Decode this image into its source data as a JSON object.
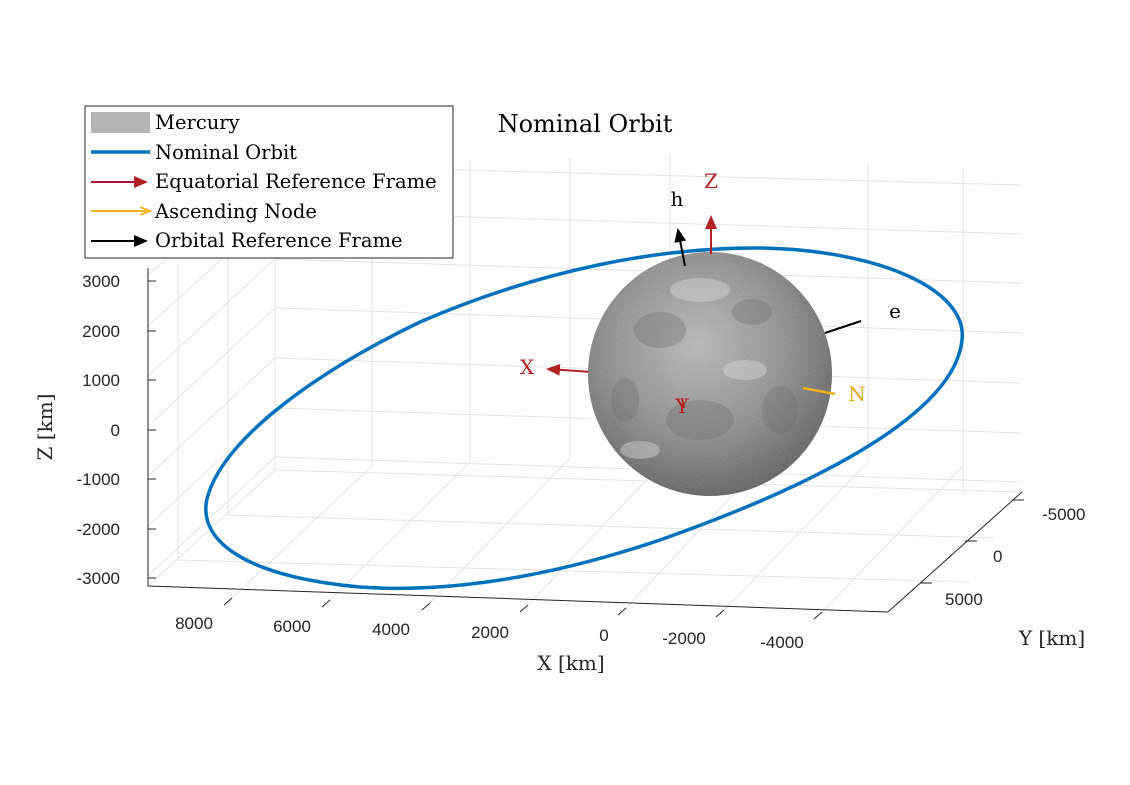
{
  "chart_data": {
    "type": "line",
    "title": "Nominal Orbit",
    "xlabel": "X [km]",
    "ylabel": "Y [km]",
    "zlabel": "Z [km]",
    "x_ticks": [
      "8000",
      "6000",
      "4000",
      "2000",
      "0",
      "-2000",
      "-4000"
    ],
    "y_ticks": [
      "-5000",
      "0",
      "5000"
    ],
    "z_ticks": [
      "3000",
      "2000",
      "1000",
      "0",
      "-1000",
      "-2000",
      "-3000"
    ],
    "grid": true,
    "legend_placement": "top-left",
    "legend": [
      {
        "label": "Mercury",
        "kind": "patch",
        "color": "#b3b3b8"
      },
      {
        "label": "Nominal Orbit",
        "kind": "line",
        "color": "#0072bd"
      },
      {
        "label": "Equatorial Reference Frame",
        "kind": "arrow",
        "color": "#a2142f"
      },
      {
        "label": "Ascending Node",
        "kind": "arrow",
        "color": "#edb120"
      },
      {
        "label": "Orbital Reference Frame",
        "kind": "arrow",
        "color": "#000000"
      }
    ],
    "vector_labels": [
      {
        "text": "Z",
        "color": "#b22222"
      },
      {
        "text": "X",
        "color": "#b22222"
      },
      {
        "text": "Y",
        "color": "#b22222"
      },
      {
        "text": "h",
        "color": "#000000"
      },
      {
        "text": "e",
        "color": "#000000"
      },
      {
        "text": "N",
        "color": "#e6a817"
      }
    ],
    "colors": {
      "orbit": "#0072bd",
      "equatorial": "#b22222",
      "node": "#edb120",
      "orbital": "#000000",
      "planet": "#8c8c8c"
    }
  }
}
